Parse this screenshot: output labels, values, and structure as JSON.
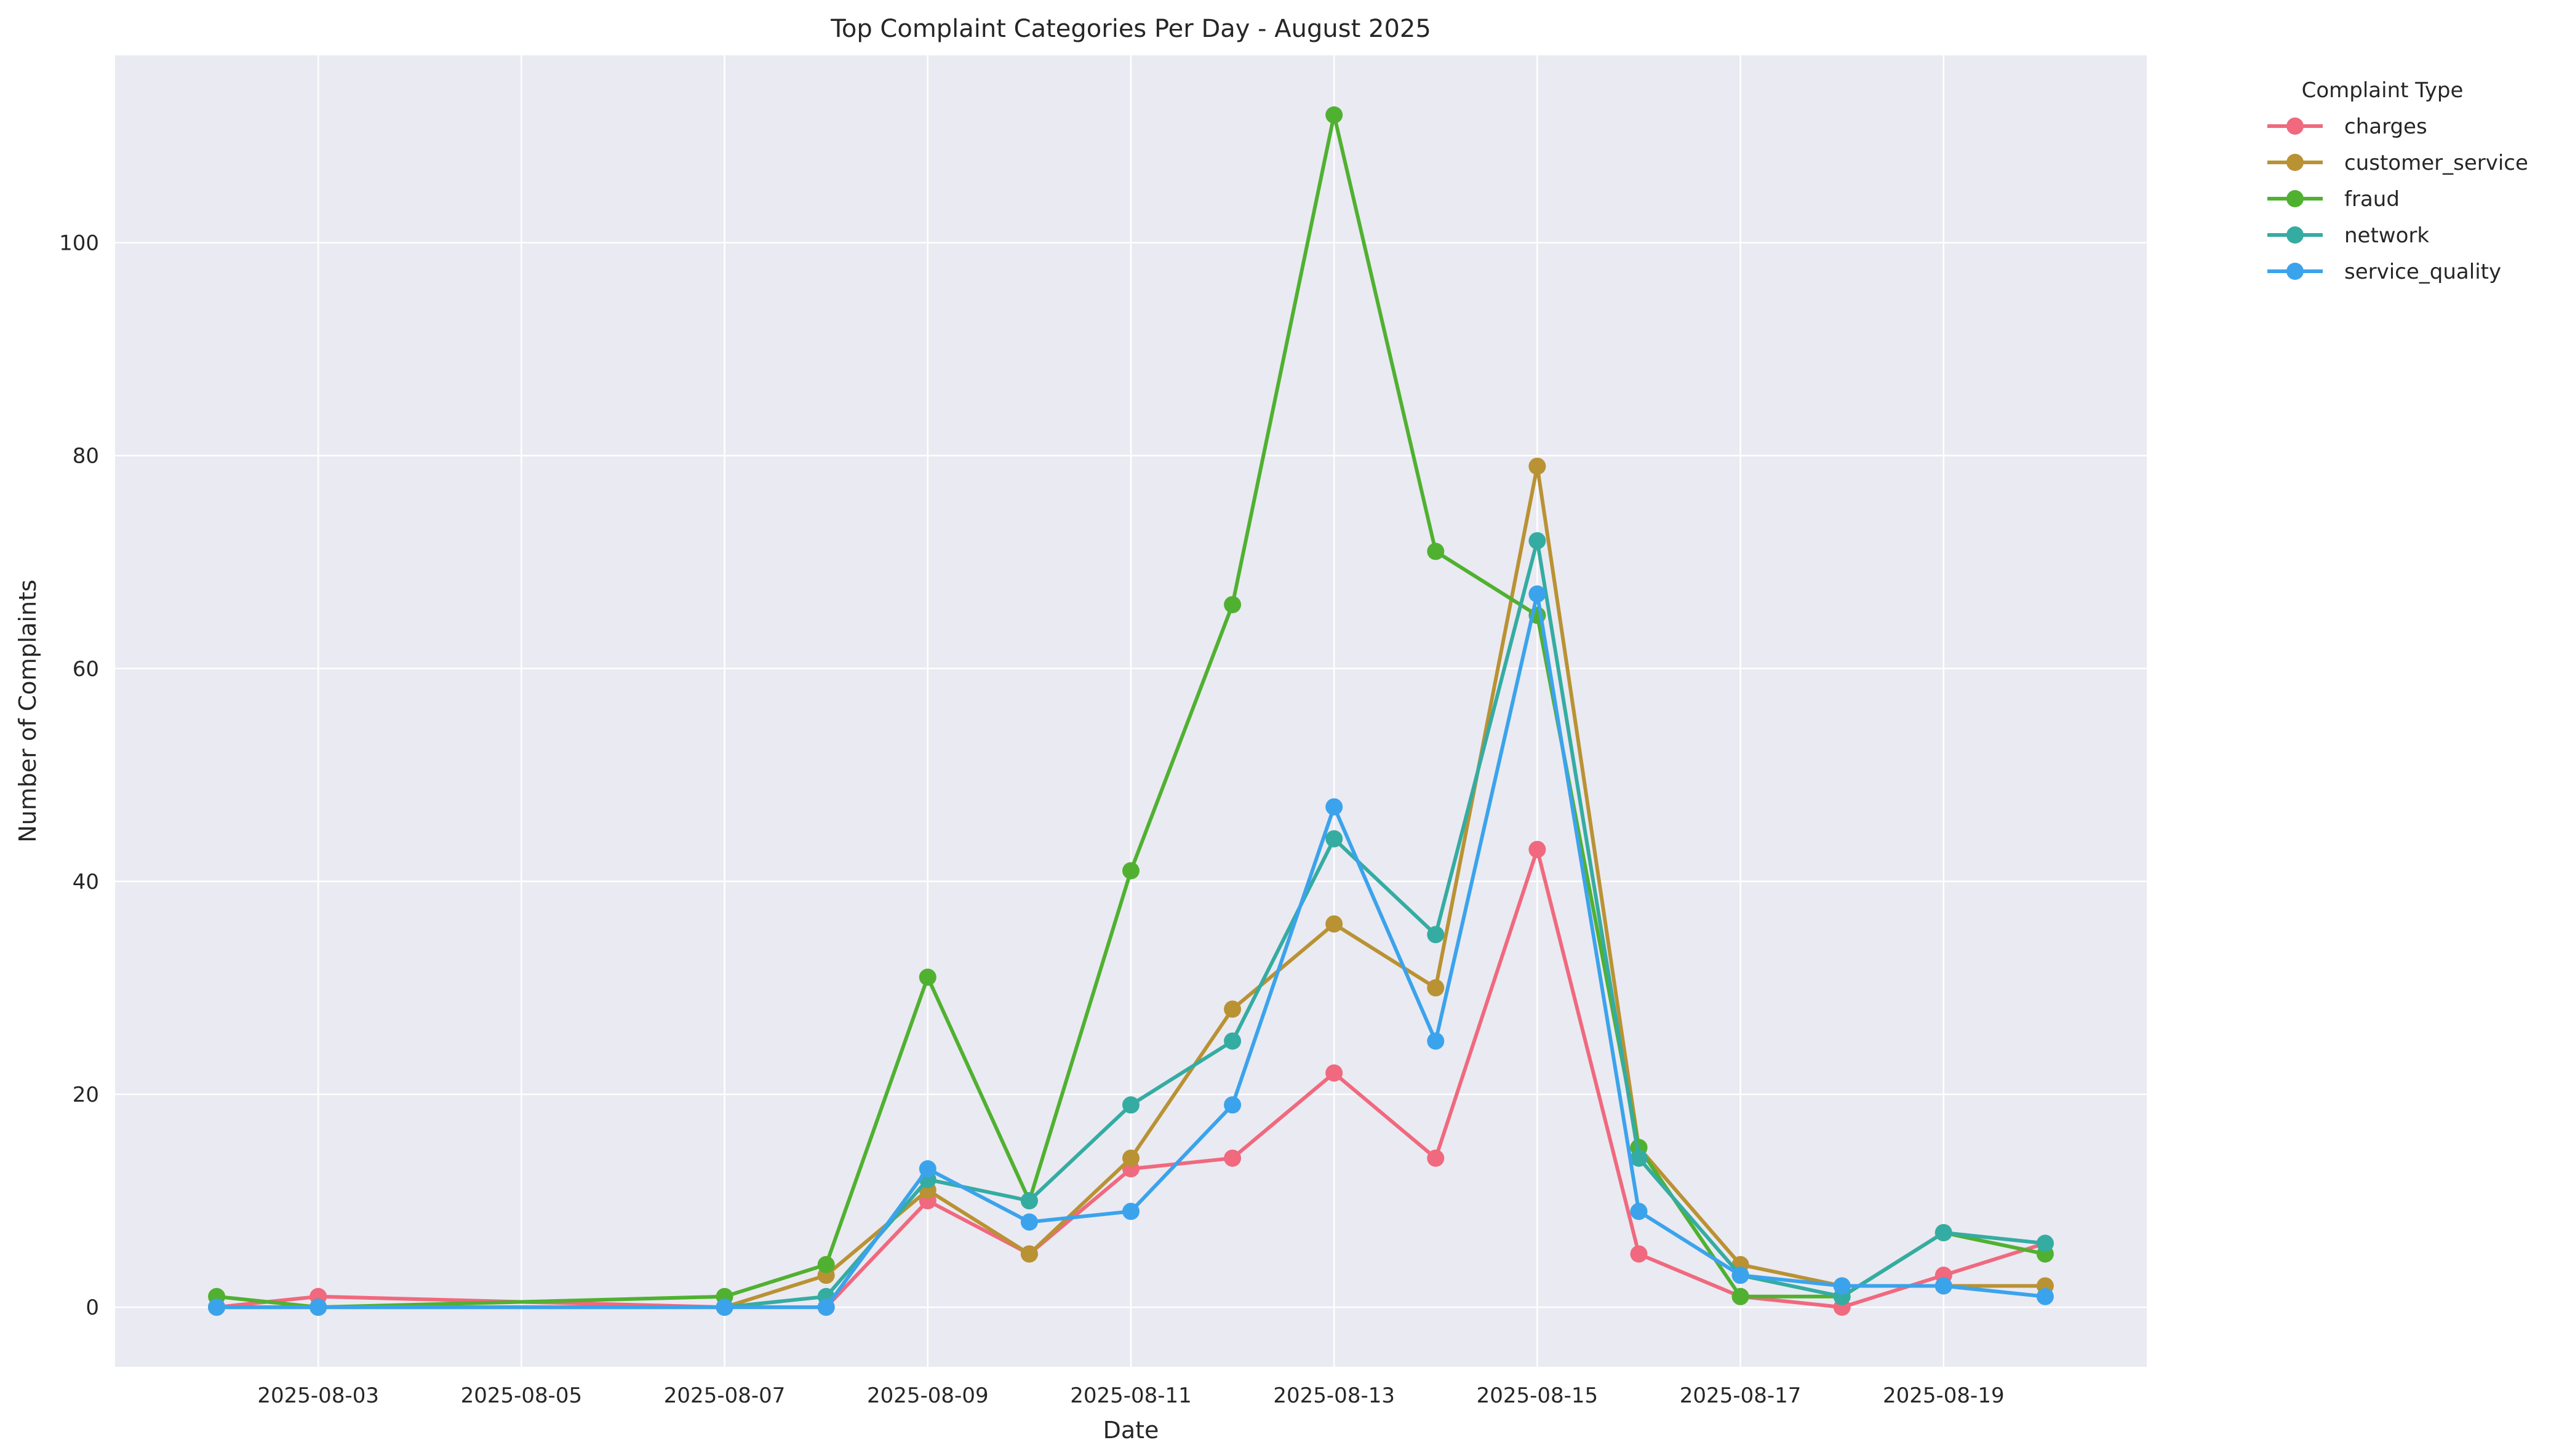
{
  "chart_data": {
    "type": "line",
    "title": "Top Complaint Categories Per Day - August 2025",
    "xlabel": "Date",
    "ylabel": "Number of Complaints",
    "ylim": [
      -5.6,
      117.6
    ],
    "yticks": [
      0,
      20,
      40,
      60,
      80,
      100
    ],
    "xlim": [
      "2025-08-01",
      "2025-08-21"
    ],
    "xticks": [
      "2025-08-03",
      "2025-08-05",
      "2025-08-07",
      "2025-08-09",
      "2025-08-11",
      "2025-08-13",
      "2025-08-15",
      "2025-08-17",
      "2025-08-19"
    ],
    "grid": true,
    "legend": {
      "title": "Complaint Type",
      "placement": "outside-top-right"
    },
    "x": [
      "2025-08-02",
      "2025-08-03",
      "2025-08-07",
      "2025-08-08",
      "2025-08-09",
      "2025-08-10",
      "2025-08-11",
      "2025-08-12",
      "2025-08-13",
      "2025-08-14",
      "2025-08-15",
      "2025-08-16",
      "2025-08-17",
      "2025-08-18",
      "2025-08-19",
      "2025-08-20"
    ],
    "series": [
      {
        "name": "charges",
        "color": "#f0697e",
        "values": [
          0,
          1,
          0,
          0,
          10,
          5,
          13,
          14,
          22,
          14,
          43,
          5,
          1,
          0,
          3,
          6
        ]
      },
      {
        "name": "customer_service",
        "color": "#b99234",
        "values": [
          0,
          0,
          0,
          3,
          11,
          5,
          14,
          28,
          36,
          30,
          79,
          15,
          4,
          2,
          2,
          2
        ]
      },
      {
        "name": "fraud",
        "color": "#50b131",
        "values": [
          1,
          0,
          1,
          4,
          31,
          10,
          41,
          66,
          112,
          71,
          65,
          15,
          1,
          1,
          7,
          5
        ]
      },
      {
        "name": "network",
        "color": "#35aca2",
        "values": [
          0,
          0,
          0,
          1,
          12,
          10,
          19,
          25,
          44,
          35,
          72,
          14,
          3,
          1,
          7,
          6
        ]
      },
      {
        "name": "service_quality",
        "color": "#3ba3ec",
        "values": [
          0,
          0,
          0,
          0,
          13,
          8,
          9,
          19,
          47,
          25,
          67,
          9,
          3,
          2,
          2,
          1
        ]
      }
    ]
  }
}
